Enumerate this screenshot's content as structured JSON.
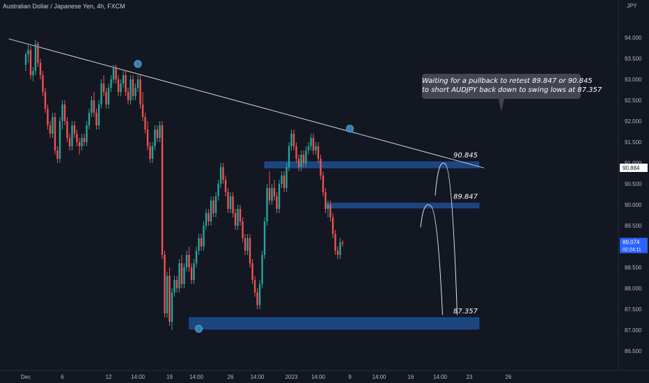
{
  "header": {
    "title": "Australian Dollar / Japanese Yen, 4h, FXCM"
  },
  "callout": {
    "line1": "Waiting for a pullback to retest 89.847 or 90.845",
    "line2": "to short AUDJPY back down to swing lows at 87.357"
  },
  "colors": {
    "background": "#131722",
    "up": "#26a69a",
    "down": "#ef5350",
    "zone": "#1e4f8c",
    "trendline": "#d1d4dc",
    "marker": "#2f7fb5",
    "price_label": "#2962ff"
  },
  "chart_data": {
    "type": "candlestick",
    "symbol": "Australian Dollar / Japanese Yen",
    "timeframe": "4h",
    "exchange": "FXCM",
    "y_axis": {
      "unit": "JPY",
      "ylim": [
        86.3,
        94.5
      ],
      "ticks": [
        "94.000",
        "93.500",
        "93.000",
        "92.500",
        "92.000",
        "91.500",
        "91.000",
        "90.500",
        "90.000",
        "89.500",
        "89.000",
        "88.500",
        "88.000",
        "87.500",
        "87.000",
        "86.500"
      ]
    },
    "x_axis": {
      "ticks": [
        {
          "label": "Dec",
          "bar": 0
        },
        {
          "label": "6",
          "bar": 15
        },
        {
          "label": "12",
          "bar": 34
        },
        {
          "label": "14:00",
          "bar": 46
        },
        {
          "label": "19",
          "bar": 59
        },
        {
          "label": "14:00",
          "bar": 70
        },
        {
          "label": "26",
          "bar": 84
        },
        {
          "label": "14:00",
          "bar": 95
        },
        {
          "label": "2023",
          "bar": 109
        },
        {
          "label": "14:00",
          "bar": 120
        },
        {
          "label": "9",
          "bar": 133
        },
        {
          "label": "14:00",
          "bar": 145
        },
        {
          "label": "16",
          "bar": 158
        },
        {
          "label": "14:00",
          "bar": 170
        },
        {
          "label": "23",
          "bar": 182
        },
        {
          "label": "26",
          "bar": 198
        }
      ]
    },
    "current_price": {
      "value": 89.074,
      "label": "89.074",
      "countdown": "02:24:11"
    },
    "trendline_price_label": "90.884",
    "zones": [
      {
        "label": "90.845",
        "top": 91.03,
        "bottom": 90.88,
        "from_bar": 98,
        "to_bar": 186
      },
      {
        "label": "89.847",
        "top": 90.04,
        "bottom": 89.92,
        "from_bar": 123,
        "to_bar": 186
      },
      {
        "label": "87.357",
        "top": 87.3,
        "bottom": 87.02,
        "from_bar": 67,
        "to_bar": 186
      }
    ],
    "trendline": [
      {
        "bar": -7,
        "price": 93.97
      },
      {
        "bar": 188,
        "price": 90.88
      }
    ],
    "swing_markers": [
      {
        "bar": 46,
        "price": 93.37,
        "kind": "high"
      },
      {
        "bar": 71,
        "price": 87.03,
        "kind": "low"
      },
      {
        "bar": 133,
        "price": 91.82,
        "kind": "high"
      }
    ],
    "projections": [
      {
        "from_bar": 168,
        "from_price": 90.22,
        "peak_bar": 172,
        "peak_price": 90.98,
        "to_bar": 177,
        "to_price": 87.36
      },
      {
        "from_bar": 162,
        "from_price": 89.46,
        "peak_bar": 166,
        "peak_price": 89.98,
        "to_bar": 171,
        "to_price": 87.36
      }
    ],
    "candles": [
      [
        93.35,
        93.65,
        93.2,
        93.6
      ],
      [
        93.6,
        93.85,
        93.4,
        93.7
      ],
      [
        93.7,
        93.8,
        93.0,
        93.1
      ],
      [
        93.1,
        93.3,
        92.95,
        93.2
      ],
      [
        93.2,
        93.95,
        93.1,
        93.85
      ],
      [
        93.85,
        93.9,
        93.3,
        93.4
      ],
      [
        93.4,
        93.5,
        93.0,
        93.1
      ],
      [
        93.1,
        93.2,
        92.6,
        92.7
      ],
      [
        92.7,
        92.8,
        92.2,
        92.3
      ],
      [
        92.3,
        92.4,
        91.8,
        91.9
      ],
      [
        91.9,
        92.0,
        91.6,
        91.7
      ],
      [
        91.7,
        92.2,
        91.6,
        92.1
      ],
      [
        92.1,
        92.2,
        91.2,
        91.3
      ],
      [
        91.3,
        91.4,
        91.0,
        91.1
      ],
      [
        91.1,
        92.1,
        91.0,
        92.0
      ],
      [
        92.0,
        92.5,
        91.8,
        92.4
      ],
      [
        92.4,
        92.5,
        91.9,
        92.0
      ],
      [
        92.0,
        92.1,
        91.5,
        91.6
      ],
      [
        91.6,
        91.7,
        91.3,
        91.4
      ],
      [
        91.4,
        92.0,
        91.3,
        91.9
      ],
      [
        91.9,
        92.0,
        91.6,
        91.7
      ],
      [
        91.7,
        91.8,
        91.4,
        91.5
      ],
      [
        91.5,
        91.6,
        91.2,
        91.4
      ],
      [
        91.4,
        91.7,
        91.3,
        91.6
      ],
      [
        91.6,
        91.7,
        91.4,
        91.5
      ],
      [
        91.5,
        92.0,
        91.4,
        91.9
      ],
      [
        91.9,
        92.3,
        91.8,
        92.2
      ],
      [
        92.2,
        92.6,
        92.1,
        92.5
      ],
      [
        92.5,
        92.7,
        92.1,
        92.2
      ],
      [
        92.2,
        92.3,
        91.8,
        91.9
      ],
      [
        91.9,
        92.5,
        91.8,
        92.4
      ],
      [
        92.4,
        93.0,
        92.3,
        92.9
      ],
      [
        92.9,
        93.1,
        92.6,
        92.7
      ],
      [
        92.7,
        92.8,
        92.3,
        92.4
      ],
      [
        92.4,
        92.9,
        92.3,
        92.8
      ],
      [
        92.8,
        93.1,
        92.7,
        93.0
      ],
      [
        93.0,
        93.35,
        92.9,
        93.3
      ],
      [
        93.3,
        93.35,
        92.9,
        93.0
      ],
      [
        93.0,
        93.1,
        92.6,
        92.7
      ],
      [
        92.7,
        93.0,
        92.6,
        92.9
      ],
      [
        92.9,
        93.2,
        92.8,
        93.1
      ],
      [
        93.1,
        93.2,
        92.6,
        92.7
      ],
      [
        92.7,
        92.8,
        92.4,
        92.5
      ],
      [
        92.5,
        93.1,
        92.4,
        93.0
      ],
      [
        93.0,
        93.1,
        92.5,
        92.6
      ],
      [
        92.6,
        92.9,
        92.5,
        92.8
      ],
      [
        92.8,
        93.1,
        92.7,
        93.0
      ],
      [
        93.0,
        93.1,
        92.3,
        92.4
      ],
      [
        92.4,
        92.7,
        92.0,
        92.1
      ],
      [
        92.1,
        92.2,
        91.7,
        91.8
      ],
      [
        91.8,
        92.0,
        91.3,
        91.4
      ],
      [
        91.4,
        91.5,
        91.0,
        91.1
      ],
      [
        91.1,
        91.5,
        91.0,
        91.4
      ],
      [
        91.4,
        91.9,
        91.3,
        91.8
      ],
      [
        91.8,
        91.9,
        91.5,
        91.6
      ],
      [
        91.6,
        92.0,
        91.5,
        91.9
      ],
      [
        91.9,
        92.0,
        88.7,
        88.8
      ],
      [
        88.8,
        88.9,
        87.3,
        87.4
      ],
      [
        87.4,
        88.4,
        87.3,
        88.3
      ],
      [
        88.3,
        88.5,
        87.1,
        87.2
      ],
      [
        87.2,
        88.0,
        87.0,
        87.9
      ],
      [
        87.9,
        88.3,
        87.8,
        88.2
      ],
      [
        88.2,
        88.3,
        87.9,
        88.0
      ],
      [
        88.0,
        88.7,
        87.9,
        88.6
      ],
      [
        88.6,
        88.8,
        88.0,
        88.1
      ],
      [
        88.1,
        88.6,
        88.0,
        88.5
      ],
      [
        88.5,
        88.9,
        88.4,
        88.8
      ],
      [
        88.8,
        89.0,
        88.4,
        88.5
      ],
      [
        88.5,
        88.6,
        88.1,
        88.2
      ],
      [
        88.2,
        88.7,
        88.1,
        88.6
      ],
      [
        88.6,
        89.0,
        88.5,
        88.9
      ],
      [
        88.9,
        89.3,
        88.8,
        89.2
      ],
      [
        89.2,
        89.3,
        88.9,
        89.0
      ],
      [
        89.0,
        89.6,
        88.9,
        89.5
      ],
      [
        89.5,
        89.9,
        89.4,
        89.8
      ],
      [
        89.8,
        89.9,
        89.5,
        89.6
      ],
      [
        89.6,
        90.2,
        89.5,
        90.1
      ],
      [
        90.1,
        90.2,
        89.7,
        89.8
      ],
      [
        89.8,
        90.3,
        89.7,
        90.2
      ],
      [
        90.2,
        90.6,
        90.1,
        90.5
      ],
      [
        90.5,
        91.0,
        90.4,
        90.9
      ],
      [
        90.9,
        91.0,
        90.5,
        90.6
      ],
      [
        90.6,
        90.7,
        90.2,
        90.3
      ],
      [
        90.3,
        90.4,
        89.8,
        89.9
      ],
      [
        89.9,
        90.3,
        89.8,
        90.2
      ],
      [
        90.2,
        90.3,
        89.7,
        89.8
      ],
      [
        89.8,
        89.9,
        89.4,
        89.5
      ],
      [
        89.5,
        90.0,
        89.4,
        89.9
      ],
      [
        89.9,
        90.0,
        89.5,
        89.6
      ],
      [
        89.6,
        89.7,
        89.1,
        89.2
      ],
      [
        89.2,
        89.3,
        88.8,
        88.9
      ],
      [
        88.9,
        89.3,
        88.8,
        89.2
      ],
      [
        89.2,
        89.3,
        88.5,
        88.6
      ],
      [
        88.6,
        88.7,
        88.1,
        88.2
      ],
      [
        88.2,
        88.3,
        87.8,
        87.9
      ],
      [
        87.9,
        88.0,
        87.5,
        87.6
      ],
      [
        87.6,
        88.2,
        87.5,
        88.1
      ],
      [
        88.1,
        88.9,
        88.0,
        88.8
      ],
      [
        88.8,
        89.7,
        88.7,
        89.6
      ],
      [
        89.6,
        90.5,
        89.5,
        90.4
      ],
      [
        90.4,
        90.8,
        90.0,
        90.1
      ],
      [
        90.1,
        90.5,
        90.0,
        90.4
      ],
      [
        90.4,
        90.6,
        90.1,
        90.2
      ],
      [
        90.2,
        90.3,
        89.8,
        89.9
      ],
      [
        89.9,
        90.6,
        89.8,
        90.5
      ],
      [
        90.5,
        90.8,
        90.4,
        90.7
      ],
      [
        90.7,
        90.8,
        90.3,
        90.4
      ],
      [
        90.4,
        91.0,
        90.3,
        90.9
      ],
      [
        90.9,
        91.5,
        90.8,
        91.4
      ],
      [
        91.4,
        91.8,
        91.3,
        91.7
      ],
      [
        91.7,
        91.8,
        91.3,
        91.4
      ],
      [
        91.4,
        91.5,
        91.0,
        91.1
      ],
      [
        91.1,
        91.2,
        90.8,
        90.9
      ],
      [
        90.9,
        91.3,
        90.8,
        91.2
      ],
      [
        91.2,
        91.3,
        90.9,
        91.0
      ],
      [
        91.0,
        91.4,
        90.9,
        91.3
      ],
      [
        91.3,
        91.5,
        91.2,
        91.4
      ],
      [
        91.4,
        91.7,
        91.3,
        91.6
      ],
      [
        91.6,
        91.7,
        91.2,
        91.3
      ],
      [
        91.3,
        91.5,
        91.2,
        91.4
      ],
      [
        91.4,
        91.5,
        91.0,
        91.1
      ],
      [
        91.1,
        91.2,
        90.6,
        90.7
      ],
      [
        90.7,
        90.8,
        90.2,
        90.3
      ],
      [
        90.3,
        90.4,
        89.8,
        89.9
      ],
      [
        89.9,
        90.1,
        89.7,
        90.0
      ],
      [
        90.0,
        90.1,
        89.6,
        89.7
      ],
      [
        89.7,
        89.8,
        89.2,
        89.3
      ],
      [
        89.3,
        89.4,
        88.8,
        88.9
      ],
      [
        88.9,
        89.0,
        88.7,
        88.8
      ],
      [
        88.8,
        89.2,
        88.7,
        89.1
      ],
      [
        89.1,
        89.15,
        89.0,
        89.074
      ]
    ]
  }
}
